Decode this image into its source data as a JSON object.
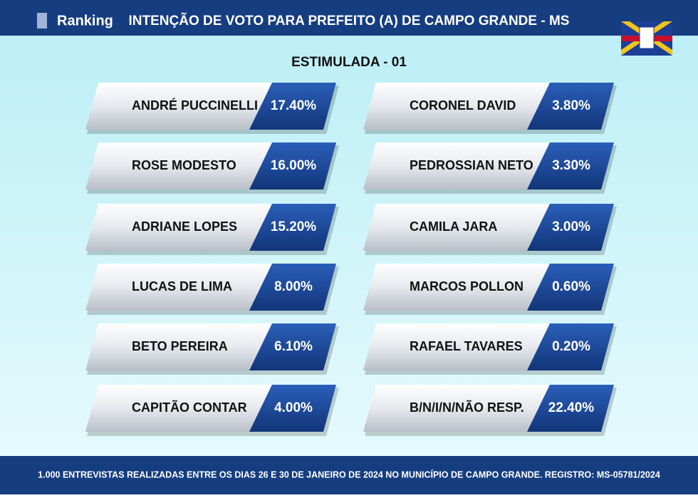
{
  "header": {
    "logo": "Ranking",
    "title": "INTENÇÃO DE VOTO PARA PREFEITO (A) DE CAMPO GRANDE - MS"
  },
  "subtitle": "ESTIMULADA - 01",
  "columns": [
    [
      {
        "name": "ANDRÉ PUCCINELLI",
        "value": "17.40%"
      },
      {
        "name": "ROSE MODESTO",
        "value": "16.00%"
      },
      {
        "name": "ADRIANE LOPES",
        "value": "15.20%"
      },
      {
        "name": "LUCAS DE LIMA",
        "value": "8.00%"
      },
      {
        "name": "BETO PEREIRA",
        "value": "6.10%"
      },
      {
        "name": "CAPITÃO CONTAR",
        "value": "4.00%"
      }
    ],
    [
      {
        "name": "CORONEL DAVID",
        "value": "3.80%"
      },
      {
        "name": "PEDROSSIAN NETO",
        "value": "3.30%"
      },
      {
        "name": "CAMILA JARA",
        "value": "3.00%"
      },
      {
        "name": "MARCOS POLLON",
        "value": "0.60%"
      },
      {
        "name": "RAFAEL TAVARES",
        "value": "0.20%"
      },
      {
        "name": "B/N/I/N/NÃO RESP.",
        "value": "22.40%"
      }
    ]
  ],
  "footer": "1.000 ENTREVISTAS REALIZADAS ENTRE OS DIAS 26 E 30 DE JANEIRO DE 2024 NO MUNICÍPIO DE CAMPO GRANDE. REGISTRO: MS-05781/2024"
}
